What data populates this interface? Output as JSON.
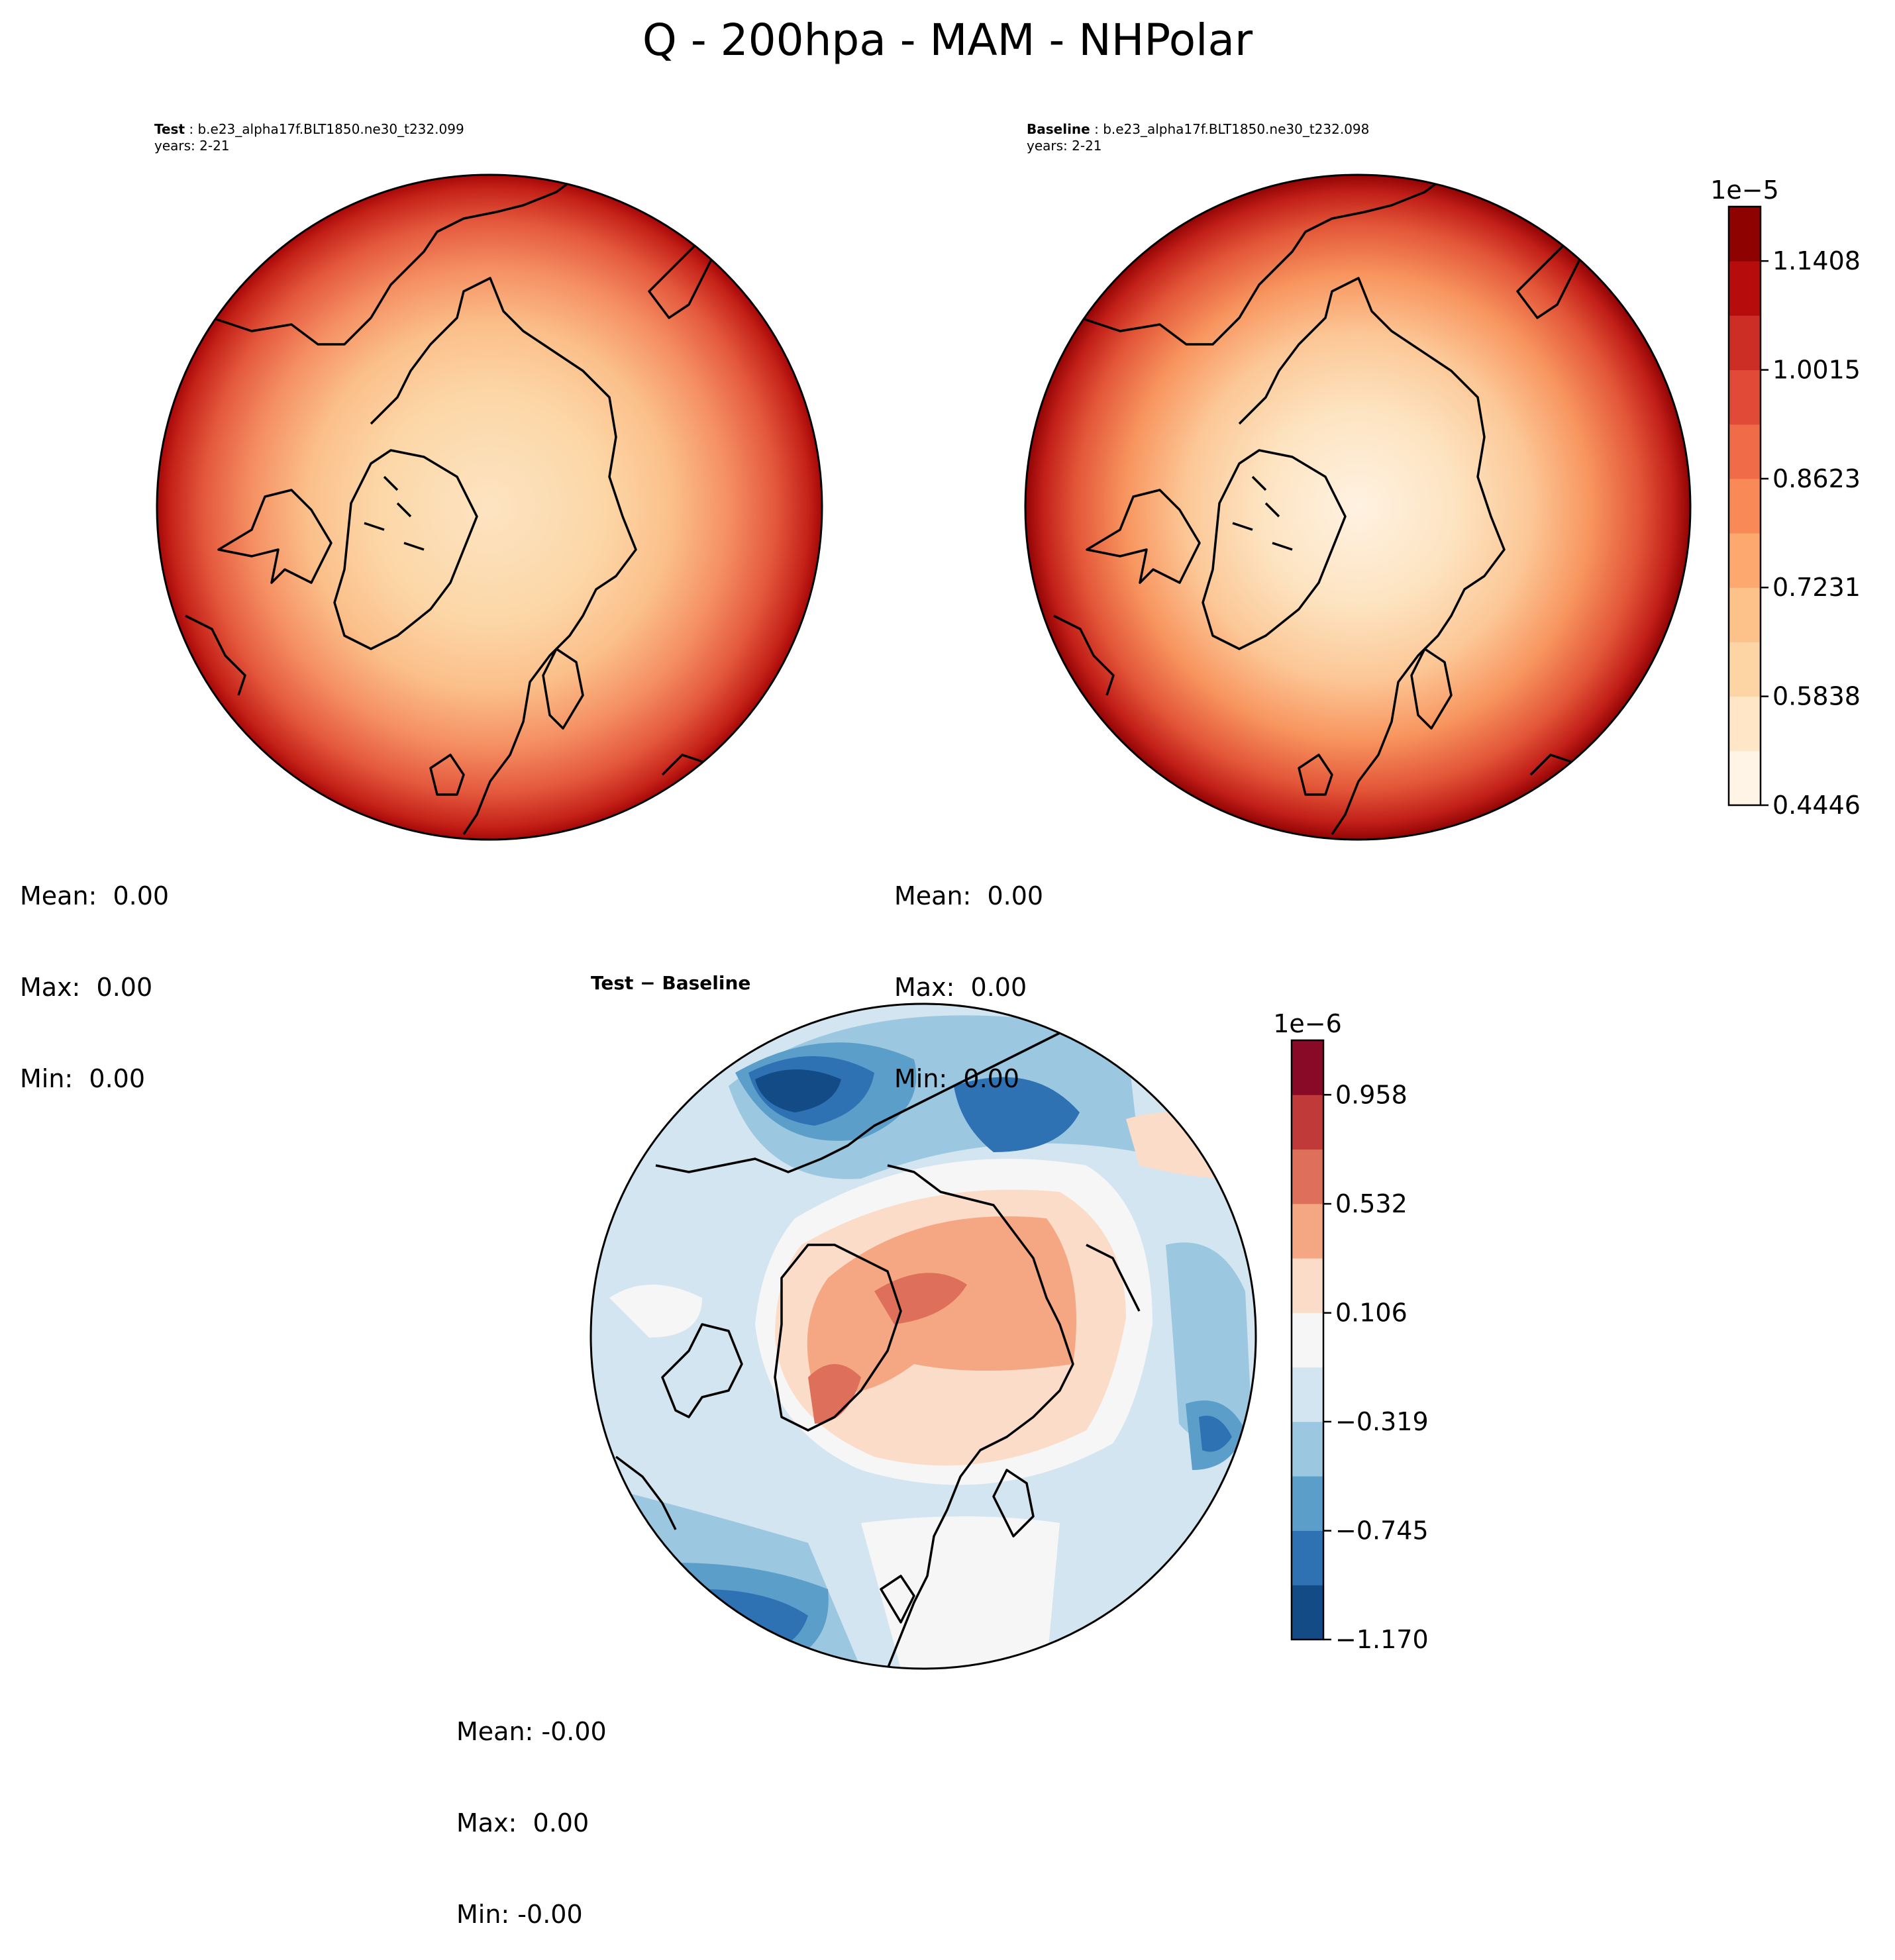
{
  "figure": {
    "title": "Q - 200hpa - MAM - NHPolar"
  },
  "panels": {
    "test": {
      "name_label": "Test",
      "case": "b.e23_alpha17f.BLT1850.ne30_t232.099",
      "years": "years: 2-21",
      "mean": "Mean:  0.00",
      "max": "Max:  0.00",
      "min": "Min:  0.00"
    },
    "baseline": {
      "name_label": "Baseline",
      "case": "b.e23_alpha17f.BLT1850.ne30_t232.098",
      "years": "years: 2-21",
      "mean": "Mean:  0.00",
      "max": "Max:  0.00",
      "min": "Min:  0.00"
    },
    "diff": {
      "title": "Test − Baseline",
      "mean": "Mean: -0.00",
      "max": "Max:  0.00",
      "min": "Min: -0.00"
    }
  },
  "chart_data": [
    {
      "type": "heatmap",
      "panel": "test",
      "projection": "north-polar-stereographic",
      "field": "Q",
      "level": "200hpa",
      "season": "MAM",
      "pattern": "low at pole, increasing toward edge",
      "colormap": "OrRd"
    },
    {
      "type": "heatmap",
      "panel": "baseline",
      "projection": "north-polar-stereographic",
      "field": "Q",
      "level": "200hpa",
      "season": "MAM",
      "colormap": "OrRd",
      "colorbar": {
        "multiplier": "1e−5",
        "ticks": [
          "0.4446",
          "0.5838",
          "0.7231",
          "0.8623",
          "1.0015",
          "1.1408"
        ],
        "tick_values": [
          0.4446,
          0.5838,
          0.7231,
          0.8623,
          1.0015,
          1.1408
        ],
        "range": [
          0.4446,
          1.2104
        ],
        "colors": [
          "#fff4e6",
          "#fee6c6",
          "#fdd4a4",
          "#fdc18a",
          "#fca86f",
          "#f98a58",
          "#f06b48",
          "#e04a36",
          "#cc2e26",
          "#b70c0c",
          "#8e0202"
        ]
      }
    },
    {
      "type": "heatmap",
      "panel": "diff",
      "projection": "north-polar-stereographic",
      "field": "Q difference",
      "colormap": "RdBu_r",
      "colorbar": {
        "multiplier": "1e−6",
        "ticks": [
          "0.958",
          "0.532",
          "0.106",
          "−0.319",
          "−0.745",
          "−1.170"
        ],
        "tick_values": [
          0.958,
          0.532,
          0.106,
          -0.319,
          -0.745,
          -1.17
        ],
        "range": [
          -1.17,
          1.171
        ],
        "colors": [
          "#134b87",
          "#2f72b4",
          "#5b9ec9",
          "#9bc8e0",
          "#d3e5f0",
          "#f6f6f6",
          "#fbdcc8",
          "#f5a784",
          "#de6f5a",
          "#c03a3a",
          "#890a26"
        ]
      }
    }
  ]
}
